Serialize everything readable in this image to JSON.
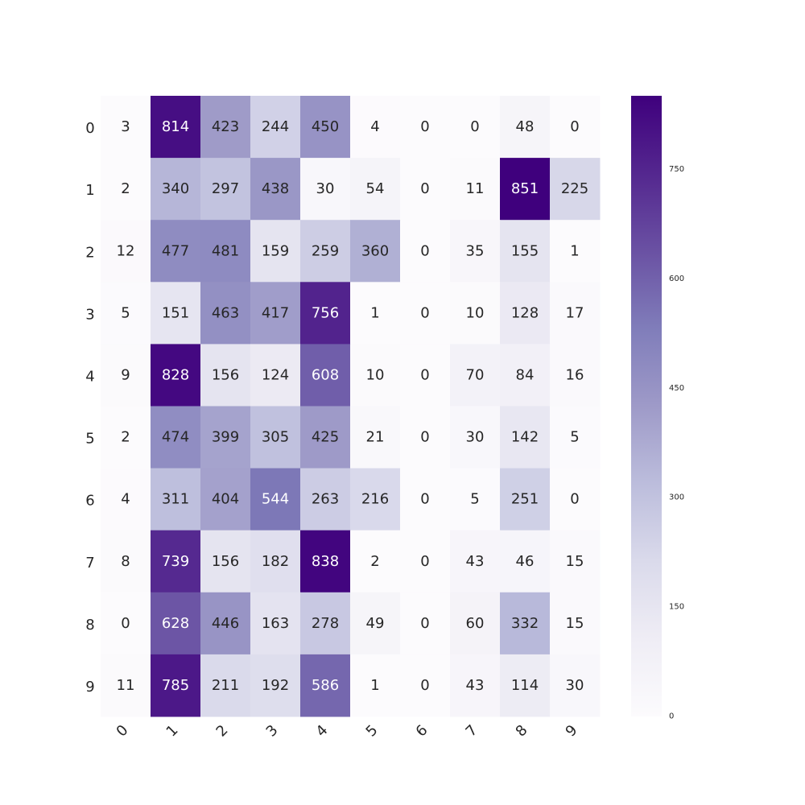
{
  "chart_data": {
    "type": "heatmap",
    "title": "",
    "xlabel": "",
    "ylabel": "",
    "x_categories": [
      "0",
      "1",
      "2",
      "3",
      "4",
      "5",
      "6",
      "7",
      "8",
      "9"
    ],
    "y_categories": [
      "0",
      "1",
      "2",
      "3",
      "4",
      "5",
      "6",
      "7",
      "8",
      "9"
    ],
    "values": [
      [
        3,
        814,
        423,
        244,
        450,
        4,
        0,
        0,
        48,
        0
      ],
      [
        2,
        340,
        297,
        438,
        30,
        54,
        0,
        11,
        851,
        225
      ],
      [
        12,
        477,
        481,
        159,
        259,
        360,
        0,
        35,
        155,
        1
      ],
      [
        5,
        151,
        463,
        417,
        756,
        1,
        0,
        10,
        128,
        17
      ],
      [
        9,
        828,
        156,
        124,
        608,
        10,
        0,
        70,
        84,
        16
      ],
      [
        2,
        474,
        399,
        305,
        425,
        21,
        0,
        30,
        142,
        5
      ],
      [
        4,
        311,
        404,
        544,
        263,
        216,
        0,
        5,
        251,
        0
      ],
      [
        8,
        739,
        156,
        182,
        838,
        2,
        0,
        43,
        46,
        15
      ],
      [
        0,
        628,
        446,
        163,
        278,
        49,
        0,
        60,
        332,
        15
      ],
      [
        11,
        785,
        211,
        192,
        586,
        1,
        0,
        43,
        114,
        30
      ]
    ],
    "colorbar": {
      "min": 0,
      "max": 851,
      "ticks": [
        0,
        150,
        300,
        450,
        600,
        750
      ]
    },
    "colormap": "Purples",
    "colormap_stops": [
      "#fcfbfd",
      "#efedf5",
      "#dadaeb",
      "#bcbddc",
      "#9e9ac8",
      "#807dba",
      "#6a51a3",
      "#54278f",
      "#3f007d"
    ],
    "x_tick_rotation_deg": -45,
    "annotations": true,
    "grid": false
  }
}
